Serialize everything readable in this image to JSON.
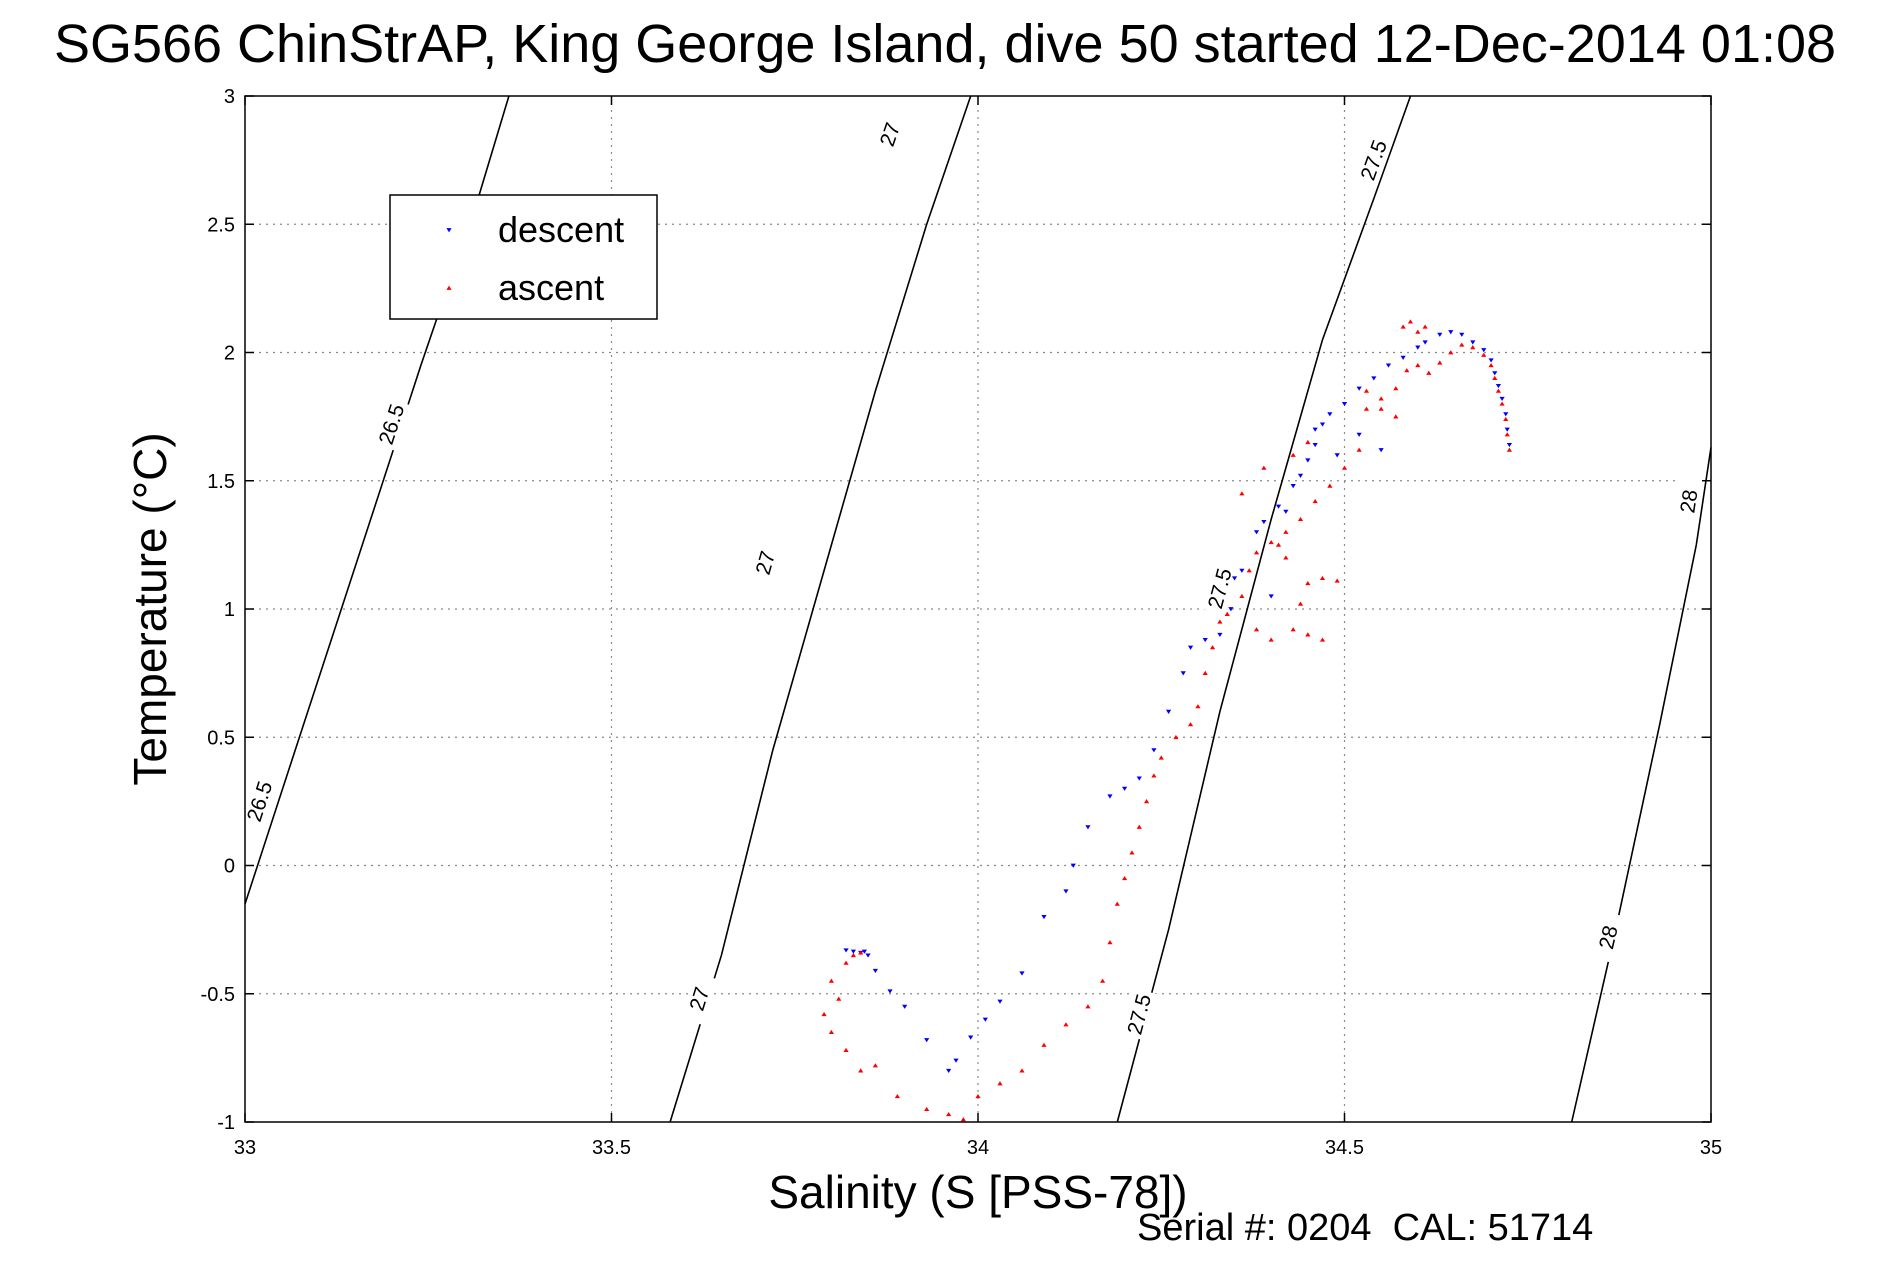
{
  "chart_data": {
    "type": "scatter",
    "title": "SG566 ChinStrAP, King George Island, dive 50 started 12-Dec-2014 01:08",
    "xlabel": "Salinity (S [PSS-78])",
    "ylabel": "Temperature (°C)",
    "xlim": [
      33,
      35
    ],
    "ylim": [
      -1,
      3
    ],
    "x_ticks": [
      "33",
      "33.5",
      "34",
      "34.5",
      "35"
    ],
    "y_ticks": [
      "-1",
      "-0.5",
      "0",
      "0.5",
      "1",
      "1.5",
      "2",
      "2.5",
      "3"
    ],
    "grid": true,
    "legend_position": "top-left",
    "footer": "Serial #: 0204  CAL: 51714",
    "isopycnals": [
      {
        "label": "26.5",
        "points": [
          [
            33.0,
            -0.15
          ],
          [
            33.08,
            0.55
          ],
          [
            33.16,
            1.25
          ],
          [
            33.24,
            1.95
          ],
          [
            33.32,
            2.62
          ],
          [
            33.36,
            3.0
          ]
        ],
        "labels_at": [
          [
            33.2,
            1.72
          ],
          [
            33.02,
            0.25
          ]
        ]
      },
      {
        "label": "27",
        "points": [
          [
            33.58,
            -1.0
          ],
          [
            33.65,
            -0.35
          ],
          [
            33.72,
            0.45
          ],
          [
            33.79,
            1.15
          ],
          [
            33.86,
            1.85
          ],
          [
            33.93,
            2.5
          ],
          [
            33.99,
            3.0
          ]
        ],
        "labels_at": [
          [
            33.62,
            -0.52
          ],
          [
            33.71,
            1.18
          ],
          [
            33.88,
            2.85
          ]
        ]
      },
      {
        "label": "27.5",
        "points": [
          [
            34.19,
            -1.0
          ],
          [
            34.26,
            -0.25
          ],
          [
            34.33,
            0.6
          ],
          [
            34.4,
            1.35
          ],
          [
            34.47,
            2.05
          ],
          [
            34.54,
            2.6
          ],
          [
            34.59,
            3.0
          ]
        ],
        "labels_at": [
          [
            34.22,
            -0.58
          ],
          [
            34.33,
            1.08
          ],
          [
            34.54,
            2.75
          ]
        ]
      },
      {
        "label": "28",
        "points": [
          [
            34.81,
            -1.0
          ],
          [
            34.87,
            -0.25
          ],
          [
            34.93,
            0.55
          ],
          [
            34.98,
            1.25
          ],
          [
            35.0,
            1.63
          ]
        ],
        "labels_at": [
          [
            34.86,
            -0.28
          ],
          [
            34.97,
            1.42
          ]
        ]
      }
    ],
    "series": [
      {
        "name": "descent",
        "color": "#0000ff",
        "marker": "triangle-down",
        "points": [
          [
            33.82,
            -0.33
          ],
          [
            33.83,
            -0.335
          ],
          [
            33.84,
            -0.34
          ],
          [
            33.845,
            -0.335
          ],
          [
            33.85,
            -0.35
          ],
          [
            33.86,
            -0.41
          ],
          [
            33.88,
            -0.49
          ],
          [
            33.9,
            -0.55
          ],
          [
            33.93,
            -0.68
          ],
          [
            33.96,
            -0.8
          ],
          [
            33.97,
            -0.76
          ],
          [
            33.99,
            -0.67
          ],
          [
            34.01,
            -0.6
          ],
          [
            34.03,
            -0.53
          ],
          [
            34.06,
            -0.42
          ],
          [
            34.09,
            -0.2
          ],
          [
            34.12,
            -0.1
          ],
          [
            34.13,
            0.0
          ],
          [
            34.15,
            0.15
          ],
          [
            34.18,
            0.27
          ],
          [
            34.2,
            0.3
          ],
          [
            34.22,
            0.34
          ],
          [
            34.24,
            0.45
          ],
          [
            34.26,
            0.6
          ],
          [
            34.28,
            0.75
          ],
          [
            34.29,
            0.85
          ],
          [
            34.31,
            0.88
          ],
          [
            34.33,
            0.9
          ],
          [
            34.345,
            1.0
          ],
          [
            34.36,
            1.15
          ],
          [
            34.38,
            1.3
          ],
          [
            34.39,
            1.34
          ],
          [
            34.41,
            1.4
          ],
          [
            34.43,
            1.48
          ],
          [
            34.44,
            1.52
          ],
          [
            34.45,
            1.58
          ],
          [
            34.46,
            1.64
          ],
          [
            34.47,
            1.72
          ],
          [
            34.48,
            1.76
          ],
          [
            34.5,
            1.8
          ],
          [
            34.52,
            1.86
          ],
          [
            34.54,
            1.9
          ],
          [
            34.56,
            1.95
          ],
          [
            34.58,
            1.98
          ],
          [
            34.6,
            2.02
          ],
          [
            34.61,
            2.04
          ],
          [
            34.63,
            2.07
          ],
          [
            34.645,
            2.08
          ],
          [
            34.66,
            2.07
          ],
          [
            34.675,
            2.04
          ],
          [
            34.69,
            2.01
          ],
          [
            34.7,
            1.97
          ],
          [
            34.705,
            1.92
          ],
          [
            34.71,
            1.87
          ],
          [
            34.715,
            1.82
          ],
          [
            34.72,
            1.76
          ],
          [
            34.722,
            1.7
          ],
          [
            34.725,
            1.64
          ],
          [
            34.4,
            1.05
          ],
          [
            34.35,
            1.12
          ],
          [
            34.52,
            1.68
          ],
          [
            34.55,
            1.62
          ],
          [
            34.49,
            1.6
          ],
          [
            34.46,
            1.7
          ],
          [
            34.42,
            1.38
          ]
        ]
      },
      {
        "name": "ascent",
        "color": "#ff0000",
        "marker": "triangle-up",
        "points": [
          [
            33.8,
            -0.45
          ],
          [
            33.81,
            -0.52
          ],
          [
            33.79,
            -0.58
          ],
          [
            33.82,
            -0.38
          ],
          [
            33.83,
            -0.35
          ],
          [
            33.84,
            -0.34
          ],
          [
            33.8,
            -0.65
          ],
          [
            33.82,
            -0.72
          ],
          [
            33.84,
            -0.8
          ],
          [
            33.86,
            -0.78
          ],
          [
            33.89,
            -0.9
          ],
          [
            33.93,
            -0.95
          ],
          [
            33.96,
            -0.97
          ],
          [
            33.98,
            -0.99
          ],
          [
            34.0,
            -0.9
          ],
          [
            34.03,
            -0.85
          ],
          [
            34.06,
            -0.8
          ],
          [
            34.09,
            -0.7
          ],
          [
            34.12,
            -0.62
          ],
          [
            34.15,
            -0.55
          ],
          [
            34.17,
            -0.45
          ],
          [
            34.18,
            -0.3
          ],
          [
            34.19,
            -0.15
          ],
          [
            34.2,
            -0.05
          ],
          [
            34.21,
            0.05
          ],
          [
            34.22,
            0.15
          ],
          [
            34.23,
            0.25
          ],
          [
            34.24,
            0.35
          ],
          [
            34.25,
            0.42
          ],
          [
            34.27,
            0.5
          ],
          [
            34.29,
            0.55
          ],
          [
            34.3,
            0.62
          ],
          [
            34.31,
            0.75
          ],
          [
            34.32,
            0.85
          ],
          [
            34.33,
            0.95
          ],
          [
            34.34,
            0.98
          ],
          [
            34.36,
            1.05
          ],
          [
            34.37,
            1.15
          ],
          [
            34.38,
            1.22
          ],
          [
            34.4,
            1.26
          ],
          [
            34.42,
            1.3
          ],
          [
            34.44,
            1.35
          ],
          [
            34.46,
            1.42
          ],
          [
            34.48,
            1.48
          ],
          [
            34.5,
            1.55
          ],
          [
            34.52,
            1.62
          ],
          [
            34.53,
            1.78
          ],
          [
            34.55,
            1.82
          ],
          [
            34.57,
            1.86
          ],
          [
            34.585,
            1.93
          ],
          [
            34.6,
            1.95
          ],
          [
            34.615,
            1.92
          ],
          [
            34.63,
            1.96
          ],
          [
            34.645,
            2.0
          ],
          [
            34.66,
            2.03
          ],
          [
            34.675,
            2.02
          ],
          [
            34.69,
            1.99
          ],
          [
            34.7,
            1.95
          ],
          [
            34.705,
            1.9
          ],
          [
            34.71,
            1.85
          ],
          [
            34.715,
            1.8
          ],
          [
            34.72,
            1.74
          ],
          [
            34.722,
            1.68
          ],
          [
            34.725,
            1.62
          ],
          [
            34.58,
            2.1
          ],
          [
            34.59,
            2.12
          ],
          [
            34.6,
            2.08
          ],
          [
            34.61,
            2.1
          ],
          [
            34.43,
            1.6
          ],
          [
            34.45,
            1.65
          ],
          [
            34.39,
            1.55
          ],
          [
            34.36,
            1.45
          ],
          [
            34.45,
            1.1
          ],
          [
            34.47,
            1.12
          ],
          [
            34.49,
            1.11
          ],
          [
            34.44,
            1.02
          ],
          [
            34.43,
            0.92
          ],
          [
            34.45,
            0.9
          ],
          [
            34.47,
            0.88
          ],
          [
            34.4,
            0.88
          ],
          [
            34.38,
            0.92
          ],
          [
            34.41,
            1.25
          ],
          [
            34.42,
            1.2
          ],
          [
            34.55,
            1.78
          ],
          [
            34.57,
            1.75
          ],
          [
            34.53,
            1.85
          ]
        ]
      }
    ]
  }
}
